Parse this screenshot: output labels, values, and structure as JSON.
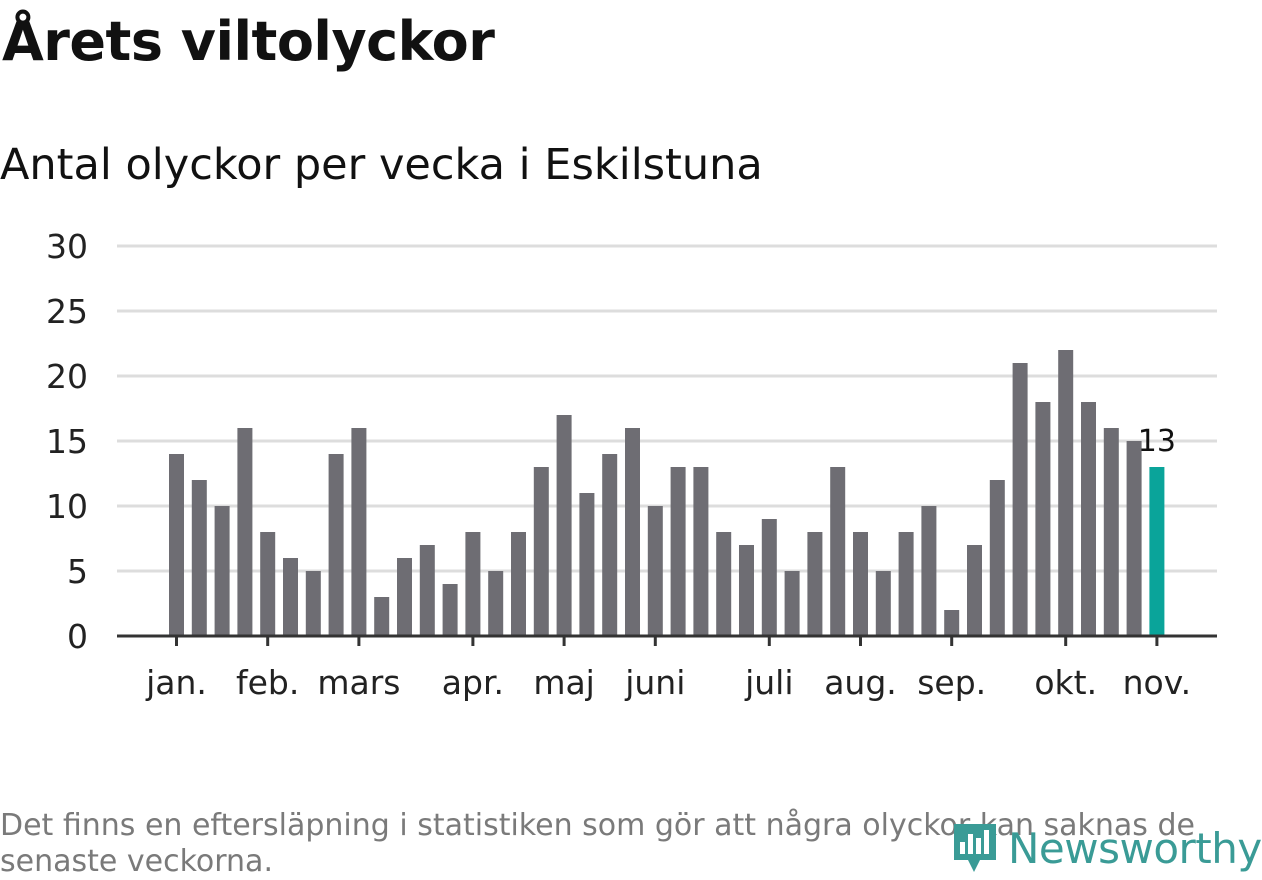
{
  "title": "Årets viltolyckor",
  "subtitle": "Antal olyckor per vecka i Eskilstuna",
  "footnote": "Det finns en eftersläpning i statistiken som gör att några olyckor kan saknas de senaste veckorna.",
  "logo": {
    "text": "Newsworthy",
    "icon": "newsworthy-logo-icon"
  },
  "colors": {
    "bar": "#6e6d73",
    "highlight": "#0aa49a",
    "grid": "#dddddd",
    "axis": "#333333",
    "text": "#222222"
  },
  "chart_data": {
    "type": "bar",
    "ylim": [
      0,
      30
    ],
    "yticks": [
      0,
      5,
      10,
      15,
      20,
      25,
      30
    ],
    "values": [
      14,
      12,
      10,
      16,
      8,
      6,
      5,
      14,
      16,
      3,
      6,
      7,
      4,
      8,
      5,
      8,
      13,
      17,
      11,
      14,
      16,
      10,
      13,
      13,
      8,
      7,
      9,
      5,
      8,
      13,
      8,
      5,
      8,
      10,
      2,
      7,
      12,
      21,
      18,
      22,
      18,
      16,
      15,
      13
    ],
    "highlight_index": 43,
    "highlight_label": "13",
    "month_ticks": [
      {
        "label": "jan.",
        "bar": 0
      },
      {
        "label": "feb.",
        "bar": 4
      },
      {
        "label": "mars",
        "bar": 8
      },
      {
        "label": "apr.",
        "bar": 13
      },
      {
        "label": "maj",
        "bar": 17
      },
      {
        "label": "juni",
        "bar": 21
      },
      {
        "label": "juli",
        "bar": 26
      },
      {
        "label": "aug.",
        "bar": 30
      },
      {
        "label": "sep.",
        "bar": 34
      },
      {
        "label": "okt.",
        "bar": 39
      },
      {
        "label": "nov.",
        "bar": 43
      }
    ]
  }
}
